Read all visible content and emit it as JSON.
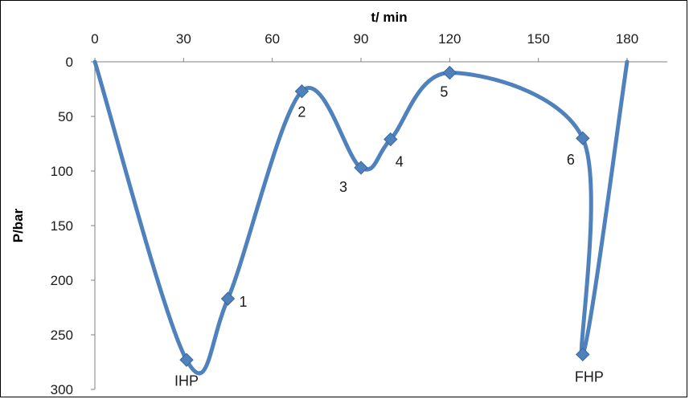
{
  "chart_data": {
    "type": "scatter",
    "xlabel": "t/ min",
    "ylabel": "P/bar",
    "xlim": [
      0,
      180
    ],
    "ylim": [
      0,
      300
    ],
    "y_inverted": true,
    "x_axis_position": "top",
    "x_ticks": [
      "0",
      "30",
      "60",
      "90",
      "120",
      "150",
      "180"
    ],
    "y_ticks": [
      "0",
      "50",
      "100",
      "150",
      "200",
      "250",
      "300"
    ],
    "grid": false,
    "legend": "none",
    "smoothed_line": true,
    "series": [
      {
        "color": "#4F81BD",
        "marker": "diamond",
        "x": [
          0,
          31,
          45,
          70,
          90,
          100,
          120,
          165,
          165,
          180
        ],
        "y": [
          0,
          273,
          217,
          27,
          97,
          71,
          10,
          70,
          268,
          0
        ],
        "point_labels": [
          "",
          "IHP",
          "1",
          "2",
          "3",
          "4",
          "5",
          "6",
          "FHP",
          ""
        ]
      }
    ]
  }
}
